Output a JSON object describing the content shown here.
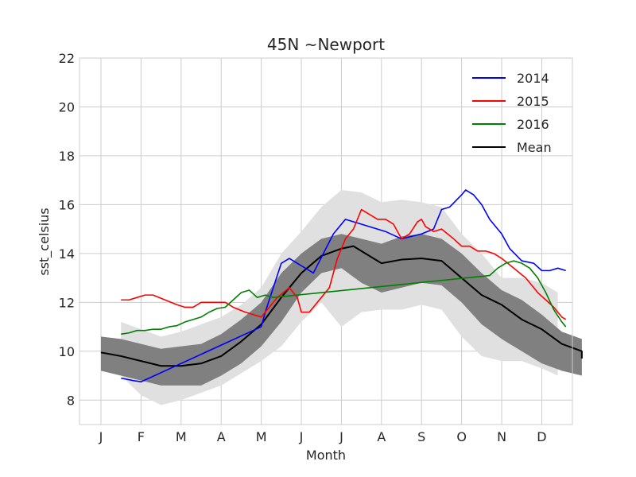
{
  "chart_data": {
    "type": "line",
    "title": "45N ~Newport",
    "xlabel": "Month",
    "ylabel": "sst_celsius",
    "xlim": [
      1,
      13.3
    ],
    "ylim": [
      7,
      22
    ],
    "yticks": [
      8,
      10,
      12,
      14,
      16,
      18,
      20,
      22
    ],
    "xticks": [
      {
        "label": "J",
        "month": 1
      },
      {
        "label": "F",
        "month": 2
      },
      {
        "label": "M",
        "month": 3
      },
      {
        "label": "A",
        "month": 4
      },
      {
        "label": "M",
        "month": 5
      },
      {
        "label": "J",
        "month": 6
      },
      {
        "label": "J",
        "month": 7
      },
      {
        "label": "A",
        "month": 8
      },
      {
        "label": "S",
        "month": 9
      },
      {
        "label": "O",
        "month": 10
      },
      {
        "label": "N",
        "month": 11
      },
      {
        "label": "D",
        "month": 12
      }
    ],
    "grid": true,
    "legend_position": "top-right",
    "outer_band": {
      "color": "#e0e0e0",
      "points": [
        [
          1.5,
          11.2,
          9.0
        ],
        [
          2.0,
          10.9,
          8.2
        ],
        [
          2.5,
          10.6,
          7.8
        ],
        [
          3.0,
          10.8,
          8.0
        ],
        [
          3.5,
          11.1,
          8.3
        ],
        [
          4.0,
          11.4,
          8.6
        ],
        [
          4.5,
          11.9,
          9.1
        ],
        [
          5.0,
          12.6,
          9.6
        ],
        [
          5.5,
          14.0,
          10.2
        ],
        [
          6.0,
          14.9,
          11.2
        ],
        [
          6.5,
          15.9,
          12.0
        ],
        [
          7.0,
          16.6,
          11.0
        ],
        [
          7.5,
          16.5,
          11.6
        ],
        [
          8.0,
          16.1,
          11.7
        ],
        [
          8.5,
          16.2,
          11.7
        ],
        [
          9.0,
          16.1,
          11.9
        ],
        [
          9.5,
          15.9,
          11.7
        ],
        [
          10.0,
          14.8,
          10.6
        ],
        [
          10.5,
          14.0,
          9.8
        ],
        [
          11.0,
          13.0,
          9.6
        ],
        [
          11.5,
          13.0,
          9.6
        ],
        [
          12.0,
          12.8,
          9.3
        ],
        [
          12.4,
          12.4,
          9.0
        ]
      ]
    },
    "inner_band": {
      "color": "#808080",
      "points": [
        [
          1.0,
          10.6,
          9.2
        ],
        [
          1.5,
          10.5,
          9.0
        ],
        [
          2.0,
          10.3,
          8.8
        ],
        [
          2.5,
          10.1,
          8.6
        ],
        [
          3.0,
          10.2,
          8.6
        ],
        [
          3.5,
          10.3,
          8.6
        ],
        [
          4.0,
          10.7,
          9.0
        ],
        [
          4.5,
          11.3,
          9.5
        ],
        [
          5.0,
          12.0,
          10.2
        ],
        [
          5.5,
          13.2,
          11.2
        ],
        [
          6.0,
          14.0,
          12.4
        ],
        [
          6.5,
          14.6,
          13.2
        ],
        [
          7.0,
          14.8,
          13.4
        ],
        [
          7.5,
          14.6,
          12.8
        ],
        [
          8.0,
          14.4,
          12.4
        ],
        [
          8.5,
          14.7,
          12.6
        ],
        [
          9.0,
          14.8,
          12.8
        ],
        [
          9.5,
          14.6,
          12.7
        ],
        [
          10.0,
          14.0,
          12.0
        ],
        [
          10.5,
          13.2,
          11.1
        ],
        [
          11.0,
          12.5,
          10.5
        ],
        [
          11.5,
          12.1,
          10.0
        ],
        [
          12.0,
          11.5,
          9.5
        ],
        [
          12.5,
          10.8,
          9.2
        ],
        [
          13.0,
          10.5,
          9.0
        ]
      ]
    },
    "series": [
      {
        "name": "2014",
        "color": "#0000ff",
        "points": [
          [
            1.5,
            8.9
          ],
          [
            1.8,
            8.8
          ],
          [
            2.0,
            8.75
          ],
          [
            5.0,
            11.0
          ],
          [
            5.1,
            11.6
          ],
          [
            5.3,
            12.6
          ],
          [
            5.5,
            13.6
          ],
          [
            5.7,
            13.8
          ],
          [
            5.9,
            13.6
          ],
          [
            6.3,
            13.2
          ],
          [
            6.8,
            14.8
          ],
          [
            7.1,
            15.4
          ],
          [
            7.5,
            15.2
          ],
          [
            8.1,
            14.9
          ],
          [
            8.5,
            14.6
          ],
          [
            9.0,
            14.8
          ],
          [
            9.3,
            15.0
          ],
          [
            9.5,
            15.8
          ],
          [
            9.7,
            15.9
          ],
          [
            10.0,
            16.4
          ],
          [
            10.1,
            16.6
          ],
          [
            10.3,
            16.4
          ],
          [
            10.5,
            16.0
          ],
          [
            10.7,
            15.4
          ],
          [
            11.0,
            14.8
          ],
          [
            11.2,
            14.2
          ],
          [
            11.5,
            13.7
          ],
          [
            11.8,
            13.6
          ],
          [
            12.0,
            13.3
          ],
          [
            12.2,
            13.3
          ],
          [
            12.4,
            13.4
          ],
          [
            12.6,
            13.3
          ]
        ]
      },
      {
        "name": "2015",
        "color": "#ff0000",
        "points": [
          [
            1.5,
            12.1
          ],
          [
            1.7,
            12.1
          ],
          [
            1.9,
            12.2
          ],
          [
            2.1,
            12.3
          ],
          [
            2.3,
            12.3
          ],
          [
            2.6,
            12.1
          ],
          [
            2.9,
            11.9
          ],
          [
            3.1,
            11.8
          ],
          [
            3.3,
            11.8
          ],
          [
            3.5,
            12.0
          ],
          [
            3.8,
            12.0
          ],
          [
            4.1,
            12.0
          ],
          [
            4.3,
            11.8
          ],
          [
            4.6,
            11.6
          ],
          [
            5.0,
            11.4
          ],
          [
            5.4,
            12.2
          ],
          [
            5.7,
            12.6
          ],
          [
            5.9,
            12.2
          ],
          [
            6.0,
            11.6
          ],
          [
            6.2,
            11.6
          ],
          [
            6.5,
            12.2
          ],
          [
            6.7,
            12.6
          ],
          [
            6.9,
            13.8
          ],
          [
            7.1,
            14.6
          ],
          [
            7.3,
            15.0
          ],
          [
            7.5,
            15.8
          ],
          [
            7.7,
            15.6
          ],
          [
            7.9,
            15.4
          ],
          [
            8.1,
            15.4
          ],
          [
            8.3,
            15.2
          ],
          [
            8.5,
            14.6
          ],
          [
            8.7,
            14.8
          ],
          [
            8.9,
            15.3
          ],
          [
            9.0,
            15.4
          ],
          [
            9.1,
            15.1
          ],
          [
            9.3,
            14.9
          ],
          [
            9.5,
            15.0
          ],
          [
            9.8,
            14.6
          ],
          [
            10.0,
            14.3
          ],
          [
            10.2,
            14.3
          ],
          [
            10.4,
            14.1
          ],
          [
            10.6,
            14.1
          ],
          [
            10.8,
            14.0
          ],
          [
            11.0,
            13.8
          ],
          [
            11.3,
            13.4
          ],
          [
            11.6,
            13.0
          ],
          [
            11.9,
            12.4
          ],
          [
            12.1,
            12.1
          ],
          [
            12.3,
            11.8
          ],
          [
            12.5,
            11.4
          ],
          [
            12.6,
            11.3
          ]
        ]
      },
      {
        "name": "2016",
        "color": "#008000",
        "points": [
          [
            1.5,
            10.7
          ],
          [
            1.7,
            10.75
          ],
          [
            1.9,
            10.85
          ],
          [
            2.1,
            10.85
          ],
          [
            2.3,
            10.9
          ],
          [
            2.5,
            10.9
          ],
          [
            2.7,
            11.0
          ],
          [
            2.9,
            11.05
          ],
          [
            3.1,
            11.2
          ],
          [
            3.3,
            11.3
          ],
          [
            3.5,
            11.4
          ],
          [
            3.7,
            11.6
          ],
          [
            3.9,
            11.75
          ],
          [
            4.1,
            11.8
          ],
          [
            4.3,
            12.1
          ],
          [
            4.5,
            12.4
          ],
          [
            4.7,
            12.5
          ],
          [
            4.9,
            12.2
          ],
          [
            5.1,
            12.3
          ],
          [
            5.3,
            12.2
          ],
          [
            10.7,
            13.1
          ],
          [
            10.9,
            13.4
          ],
          [
            11.1,
            13.6
          ],
          [
            11.3,
            13.7
          ],
          [
            11.5,
            13.6
          ],
          [
            11.7,
            13.4
          ],
          [
            11.9,
            13.0
          ],
          [
            12.1,
            12.4
          ],
          [
            12.3,
            11.7
          ],
          [
            12.5,
            11.2
          ],
          [
            12.6,
            11.0
          ]
        ]
      },
      {
        "name": "Mean",
        "color": "#000000",
        "points": [
          [
            1.0,
            9.95
          ],
          [
            1.5,
            9.8
          ],
          [
            2.0,
            9.6
          ],
          [
            2.5,
            9.4
          ],
          [
            3.0,
            9.4
          ],
          [
            3.5,
            9.5
          ],
          [
            4.0,
            9.8
          ],
          [
            4.5,
            10.4
          ],
          [
            5.0,
            11.1
          ],
          [
            5.5,
            12.2
          ],
          [
            6.0,
            13.2
          ],
          [
            6.5,
            13.9
          ],
          [
            7.0,
            14.2
          ],
          [
            7.3,
            14.3
          ],
          [
            7.6,
            14.0
          ],
          [
            8.0,
            13.6
          ],
          [
            8.5,
            13.75
          ],
          [
            9.0,
            13.8
          ],
          [
            9.5,
            13.7
          ],
          [
            10.0,
            13.0
          ],
          [
            10.5,
            12.3
          ],
          [
            11.0,
            11.9
          ],
          [
            11.5,
            11.3
          ],
          [
            12.0,
            10.9
          ],
          [
            12.5,
            10.3
          ],
          [
            13.0,
            10.0
          ],
          [
            13.0,
            9.7
          ]
        ]
      }
    ]
  }
}
